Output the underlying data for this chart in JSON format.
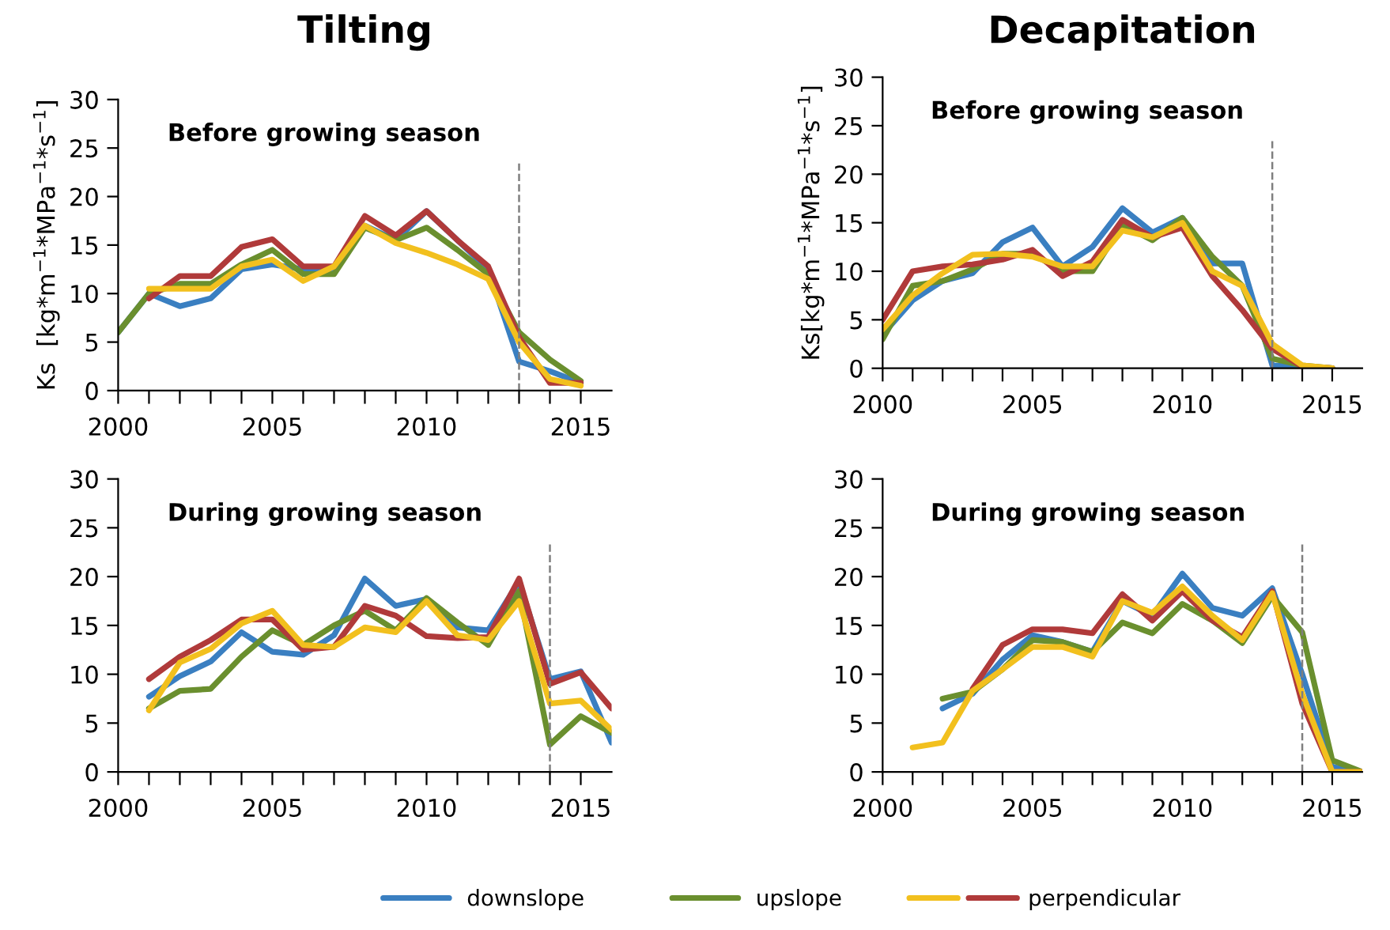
{
  "chart_data": [
    {
      "type": "line",
      "title": "Tilting",
      "ylabel": "Ks  [kg*m$^{−1}$*MPa$^{−1}$*s$^{−1}$]",
      "annotations": [
        "Before growing season"
      ],
      "x": [
        2000,
        2001,
        2002,
        2003,
        2004,
        2005,
        2006,
        2007,
        2008,
        2009,
        2010,
        2011,
        2012,
        2013,
        2014,
        2015
      ],
      "xlim": [
        2000,
        2016
      ],
      "xticks": [
        2000,
        {
          "value": 2001,
          "label": null
        },
        {
          "value": 2002,
          "label": null
        },
        {
          "value": 2003,
          "label": null
        },
        {
          "value": 2004,
          "label": null
        },
        2005,
        {
          "value": 2006,
          "label": null
        },
        {
          "value": 2007,
          "label": null
        },
        {
          "value": 2008,
          "label": null
        },
        {
          "value": 2009,
          "label": null
        },
        2010,
        {
          "value": 2011,
          "label": null
        },
        {
          "value": 2012,
          "label": null
        },
        {
          "value": 2013,
          "label": null
        },
        {
          "value": 2014,
          "label": null
        },
        2015
      ],
      "ylim": [
        0,
        30
      ],
      "yticks": [
        0,
        5,
        10,
        15,
        20,
        25,
        30
      ],
      "grid": false,
      "legend": "bottom",
      "ref_lines": [
        {
          "axis": "x",
          "value": 2013,
          "label": null,
          "color": "#7f7f7f",
          "line_style": "dashed"
        }
      ],
      "series": [
        {
          "name": "downslope",
          "color": "#3a7fc1",
          "values": [
            6,
            10,
            8.7,
            9.5,
            12.5,
            13,
            12.5,
            12.5,
            17,
            15.5,
            18.5,
            15.5,
            12.5,
            3,
            2,
            0.8
          ]
        },
        {
          "name": "upslope",
          "color": "#6a8f2e",
          "values": [
            6,
            10,
            11,
            11,
            13,
            14.5,
            12,
            12,
            16.8,
            15.5,
            16.8,
            14.5,
            12,
            6,
            3.2,
            1
          ]
        },
        {
          "name": "perpendicular",
          "color": "#b03a3a",
          "values": [
            null,
            9.5,
            11.8,
            11.8,
            14.8,
            15.6,
            12.8,
            12.8,
            18,
            16,
            18.5,
            15.5,
            12.8,
            5.5,
            0.8,
            0.8
          ]
        },
        {
          "color": "#f2c01e",
          "values": [
            null,
            10.5,
            10.5,
            10.5,
            12.8,
            13.5,
            11.3,
            12.8,
            17,
            15.2,
            14.2,
            13,
            11.5,
            5,
            1.2,
            0.5
          ]
        }
      ]
    },
    {
      "type": "line",
      "title": "Decapitation",
      "ylabel": "Ks[kg*m$^{−1}$*MPa$^{−1}$*s$^{−1}$]",
      "annotations": [
        "Before growing season"
      ],
      "x": [
        2000,
        2001,
        2002,
        2003,
        2004,
        2005,
        2006,
        2007,
        2008,
        2009,
        2010,
        2011,
        2012,
        2013,
        2014,
        2015
      ],
      "xlim": [
        2000,
        2016
      ],
      "xticks": [
        2000,
        {
          "value": 2001,
          "label": null
        },
        {
          "value": 2002,
          "label": null
        },
        {
          "value": 2003,
          "label": null
        },
        {
          "value": 2004,
          "label": null
        },
        2005,
        {
          "value": 2006,
          "label": null
        },
        {
          "value": 2007,
          "label": null
        },
        {
          "value": 2008,
          "label": null
        },
        {
          "value": 2009,
          "label": null
        },
        2010,
        {
          "value": 2011,
          "label": null
        },
        {
          "value": 2012,
          "label": null
        },
        {
          "value": 2013,
          "label": null
        },
        {
          "value": 2014,
          "label": null
        },
        2015
      ],
      "ylim": [
        0,
        30
      ],
      "yticks": [
        0,
        5,
        10,
        15,
        20,
        25,
        30
      ],
      "grid": false,
      "legend": "bottom",
      "ref_lines": [
        {
          "axis": "x",
          "value": 2013,
          "label": null,
          "color": "#7f7f7f",
          "line_style": "dashed"
        }
      ],
      "series": [
        {
          "name": "downslope",
          "color": "#3a7fc1",
          "values": [
            3.5,
            7,
            9,
            9.8,
            13,
            14.5,
            10.5,
            12.5,
            16.5,
            14,
            15.5,
            10.8,
            10.8,
            0.3,
            0.2,
            0
          ]
        },
        {
          "name": "upslope",
          "color": "#6a8f2e",
          "values": [
            3,
            8.5,
            9,
            10.2,
            11.8,
            11.8,
            10,
            10,
            14.8,
            13.2,
            15.5,
            11.5,
            8.5,
            1,
            0.3,
            0
          ]
        },
        {
          "name": "perpendicular",
          "color": "#b03a3a",
          "values": [
            5,
            10,
            10.5,
            10.7,
            11.2,
            12.2,
            9.5,
            11,
            15.3,
            13.5,
            14.5,
            9.5,
            6,
            2,
            0.2,
            0
          ]
        },
        {
          "color": "#f2c01e",
          "values": [
            4,
            7.5,
            9.8,
            11.7,
            11.8,
            11.5,
            10.5,
            10.5,
            14.2,
            13.5,
            15,
            10,
            8.5,
            2.5,
            0.3,
            0
          ]
        }
      ]
    },
    {
      "type": "line",
      "annotations": [
        "During growing season"
      ],
      "x": [
        2001,
        2002,
        2003,
        2004,
        2005,
        2006,
        2007,
        2008,
        2009,
        2010,
        2011,
        2012,
        2013,
        2014,
        2015,
        2016
      ],
      "xlim": [
        2000,
        2016
      ],
      "xticks": [
        2000,
        {
          "value": 2001,
          "label": null
        },
        {
          "value": 2002,
          "label": null
        },
        {
          "value": 2003,
          "label": null
        },
        {
          "value": 2004,
          "label": null
        },
        2005,
        {
          "value": 2006,
          "label": null
        },
        {
          "value": 2007,
          "label": null
        },
        {
          "value": 2008,
          "label": null
        },
        {
          "value": 2009,
          "label": null
        },
        2010,
        {
          "value": 2011,
          "label": null
        },
        {
          "value": 2012,
          "label": null
        },
        {
          "value": 2013,
          "label": null
        },
        {
          "value": 2014,
          "label": null
        },
        2015
      ],
      "ylim": [
        0,
        30
      ],
      "yticks": [
        0,
        5,
        10,
        15,
        20,
        25,
        30
      ],
      "grid": false,
      "legend": "bottom",
      "ref_lines": [
        {
          "axis": "x",
          "value": 2014,
          "label": null,
          "color": "#7f7f7f",
          "line_style": "dashed"
        }
      ],
      "series": [
        {
          "name": "downslope",
          "color": "#3a7fc1",
          "values": [
            7.7,
            9.8,
            11.3,
            14.3,
            12.3,
            12,
            14,
            19.8,
            17,
            17.7,
            14.8,
            14.5,
            19.5,
            9.5,
            10.3,
            3
          ]
        },
        {
          "name": "upslope",
          "color": "#6a8f2e",
          "values": [
            6.5,
            8.3,
            8.5,
            11.8,
            14.5,
            13,
            15,
            16.5,
            14.5,
            17.8,
            15.3,
            13,
            18.5,
            2.8,
            5.7,
            4
          ]
        },
        {
          "name": "perpendicular",
          "color": "#b03a3a",
          "values": [
            9.5,
            11.8,
            13.5,
            15.6,
            15.6,
            12.5,
            12.8,
            17,
            16,
            13.9,
            13.7,
            13.8,
            19.8,
            9,
            10.2,
            6.5
          ]
        },
        {
          "color": "#f2c01e",
          "values": [
            6.3,
            11.2,
            12.6,
            15.2,
            16.5,
            13,
            12.8,
            14.8,
            14.3,
            17.5,
            14,
            13.5,
            17.5,
            7,
            7.3,
            4.3
          ]
        }
      ]
    },
    {
      "type": "line",
      "annotations": [
        "During growing season"
      ],
      "x": [
        2001,
        2002,
        2003,
        2004,
        2005,
        2006,
        2007,
        2008,
        2009,
        2010,
        2011,
        2012,
        2013,
        2014,
        2015,
        2016
      ],
      "xlim": [
        2000,
        2016
      ],
      "xticks": [
        2000,
        {
          "value": 2001,
          "label": null
        },
        {
          "value": 2002,
          "label": null
        },
        {
          "value": 2003,
          "label": null
        },
        {
          "value": 2004,
          "label": null
        },
        2005,
        {
          "value": 2006,
          "label": null
        },
        {
          "value": 2007,
          "label": null
        },
        {
          "value": 2008,
          "label": null
        },
        {
          "value": 2009,
          "label": null
        },
        2010,
        {
          "value": 2011,
          "label": null
        },
        {
          "value": 2012,
          "label": null
        },
        {
          "value": 2013,
          "label": null
        },
        {
          "value": 2014,
          "label": null
        },
        2015
      ],
      "ylim": [
        0,
        30
      ],
      "yticks": [
        0,
        5,
        10,
        15,
        20,
        25,
        30
      ],
      "grid": false,
      "legend": "bottom",
      "ref_lines": [
        {
          "axis": "x",
          "value": 2014,
          "label": null,
          "color": "#7f7f7f",
          "line_style": "dashed"
        }
      ],
      "series": [
        {
          "name": "downslope",
          "color": "#3a7fc1",
          "values": [
            null,
            6.5,
            8,
            11.5,
            14,
            13.3,
            12.3,
            17.5,
            16,
            20.3,
            16.8,
            16,
            18.8,
            10,
            0.5,
            0
          ]
        },
        {
          "name": "upslope",
          "color": "#6a8f2e",
          "values": [
            null,
            7.5,
            8.2,
            10.5,
            13.5,
            13.3,
            12.3,
            15.3,
            14.2,
            17.2,
            15.5,
            13.2,
            18,
            14.3,
            1.2,
            0
          ]
        },
        {
          "name": "perpendicular",
          "color": "#b03a3a",
          "values": [
            null,
            null,
            8.5,
            13,
            14.6,
            14.6,
            14.2,
            18.2,
            15.5,
            18.5,
            15.5,
            13.8,
            18.5,
            7,
            0,
            0
          ]
        },
        {
          "color": "#f2c01e",
          "values": [
            2.5,
            3,
            8.3,
            10.5,
            12.8,
            12.8,
            11.8,
            17.5,
            16.3,
            19,
            16,
            13.5,
            18.3,
            8,
            0,
            0
          ]
        }
      ]
    }
  ]
}
